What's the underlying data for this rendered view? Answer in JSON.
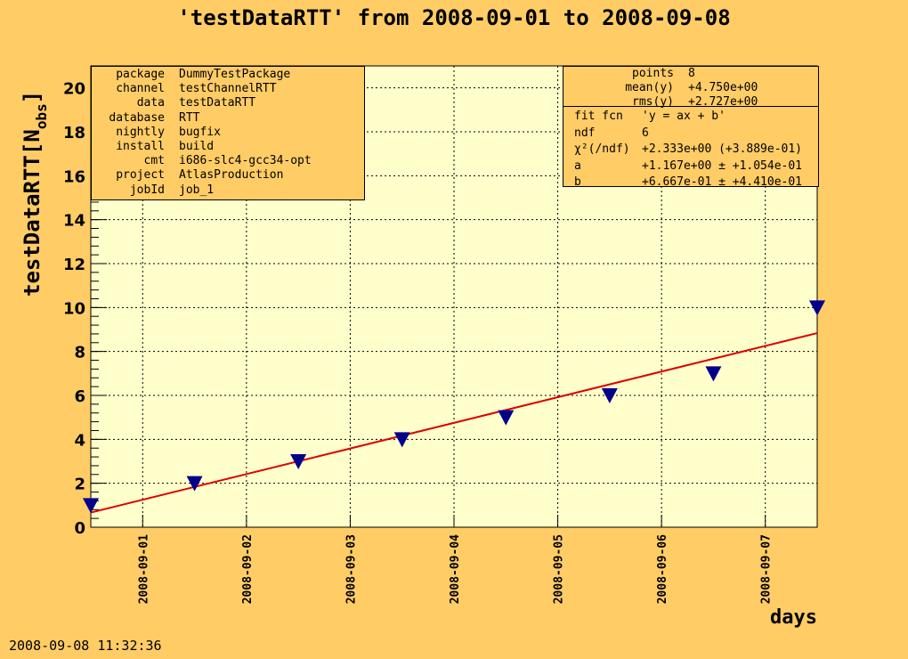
{
  "title": "'testDataRTT' from 2008-09-01 to 2008-09-08",
  "timestamp": "2008-09-08 11:32:36",
  "colors": {
    "background": "#ffcc66",
    "plot_area": "#ffffcc",
    "markers": "#00008b",
    "fit_line": "#dd0000"
  },
  "info_box": [
    {
      "key": "package",
      "value": "DummyTestPackage"
    },
    {
      "key": "channel",
      "value": "testChannelRTT"
    },
    {
      "key": "data",
      "value": "testDataRTT"
    },
    {
      "key": "database",
      "value": "RTT"
    },
    {
      "key": "nightly",
      "value": "bugfix"
    },
    {
      "key": "install",
      "value": "build"
    },
    {
      "key": "cmt",
      "value": "i686-slc4-gcc34-opt"
    },
    {
      "key": "project",
      "value": "AtlasProduction"
    },
    {
      "key": "jobId",
      "value": "job_1"
    }
  ],
  "stats_box": {
    "summary": [
      {
        "key": "points",
        "value": "8"
      },
      {
        "key": "mean(y)",
        "value": "+4.750e+00"
      },
      {
        "key": "rms(y)",
        "value": "+2.727e+00"
      }
    ],
    "fit": [
      {
        "key": "fit fcn",
        "value": "'y = ax + b'"
      },
      {
        "key": "ndf",
        "value": "6"
      },
      {
        "key": "χ²(/ndf)",
        "value": "+2.333e+00 (+3.889e-01)"
      },
      {
        "key": "a",
        "value": "+1.167e+00 ± +1.054e-01"
      },
      {
        "key": "b",
        "value": "+6.667e-01 ± +4.410e-01"
      }
    ]
  },
  "chart_data": {
    "type": "scatter",
    "title": "'testDataRTT' from 2008-09-01 to 2008-09-08",
    "xlabel": "days",
    "ylabel": "testDataRTT[N_obs]",
    "x_tick_labels": [
      "2008-09-01",
      "2008-09-02",
      "2008-09-03",
      "2008-09-04",
      "2008-09-05",
      "2008-09-06",
      "2008-09-07"
    ],
    "x_tick_values": [
      0.5,
      1.5,
      2.5,
      3.5,
      4.5,
      5.5,
      6.5
    ],
    "xlim": [
      0,
      7
    ],
    "ylim": [
      0,
      21
    ],
    "y_ticks": [
      0,
      2,
      4,
      6,
      8,
      10,
      12,
      14,
      16,
      18,
      20
    ],
    "grid": true,
    "marker": "triangle-down",
    "series": [
      {
        "x": [
          0,
          1,
          2,
          3,
          4,
          5,
          6,
          7
        ],
        "y": [
          1,
          2,
          3,
          4,
          5,
          6,
          7,
          10
        ]
      }
    ],
    "fit": {
      "function": "y = ax + b",
      "a": 1.167,
      "b": 0.6667,
      "x_range": [
        0,
        7
      ]
    }
  }
}
